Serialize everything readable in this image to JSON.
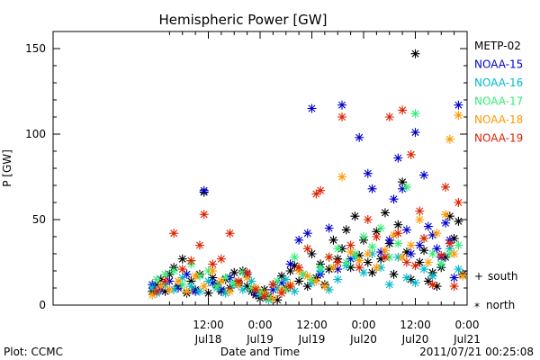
{
  "chart_data": {
    "type": "scatter",
    "title": "Hemispheric Power [GW]",
    "ylabel": "P [GW]",
    "xlabel": "Date and Time",
    "ylim": [
      0,
      160
    ],
    "y_ticks": [
      0,
      50,
      100,
      150
    ],
    "x_unit": "hours since 2011/07/17 00:00 UT",
    "xlim": [
      0,
      96
    ],
    "x_ticks": [
      {
        "t": 36,
        "time": "12:00",
        "date": "Jul18"
      },
      {
        "t": 48,
        "time": "0:00",
        "date": "Jul19"
      },
      {
        "t": 60,
        "time": "12:00",
        "date": "Jul19"
      },
      {
        "t": 72,
        "time": "0:00",
        "date": "Jul20"
      },
      {
        "t": 84,
        "time": "12:00",
        "date": "Jul20"
      },
      {
        "t": 96,
        "time": "0:00",
        "date": "Jul21"
      }
    ],
    "marker_legend": [
      {
        "symbol": "+",
        "label": "south"
      },
      {
        "symbol": "*",
        "label": "north"
      }
    ],
    "footer_left": "Plot: CCMC",
    "footer_right": "2011/07/21 00:25:08",
    "series": [
      {
        "name": "METP-02",
        "color": "#000000",
        "points": [
          [
            23,
            8
          ],
          [
            24,
            12
          ],
          [
            25,
            15
          ],
          [
            26,
            8
          ],
          [
            27,
            18
          ],
          [
            28,
            22
          ],
          [
            29,
            11
          ],
          [
            30,
            27
          ],
          [
            31,
            7
          ],
          [
            32,
            14
          ],
          [
            33,
            9
          ],
          [
            34,
            18
          ],
          [
            35,
            66
          ],
          [
            36,
            7
          ],
          [
            37,
            16
          ],
          [
            38,
            12
          ],
          [
            39,
            8
          ],
          [
            40,
            15
          ],
          [
            41,
            10
          ],
          [
            42,
            19
          ],
          [
            43,
            13
          ],
          [
            44,
            20
          ],
          [
            45,
            11
          ],
          [
            46,
            8
          ],
          [
            47,
            6
          ],
          [
            48,
            4
          ],
          [
            49,
            9
          ],
          [
            50,
            5
          ],
          [
            51,
            12
          ],
          [
            52,
            3
          ],
          [
            53,
            17
          ],
          [
            54,
            10
          ],
          [
            55,
            20
          ],
          [
            56,
            23
          ],
          [
            57,
            14
          ],
          [
            58,
            18
          ],
          [
            59,
            11
          ],
          [
            60,
            30
          ],
          [
            61,
            16
          ],
          [
            62,
            24
          ],
          [
            63,
            12
          ],
          [
            64,
            21
          ],
          [
            65,
            38
          ],
          [
            66,
            27
          ],
          [
            67,
            33
          ],
          [
            68,
            44
          ],
          [
            69,
            22
          ],
          [
            70,
            52
          ],
          [
            71,
            29
          ],
          [
            72,
            38
          ],
          [
            73,
            25
          ],
          [
            74,
            19
          ],
          [
            75,
            43
          ],
          [
            76,
            27
          ],
          [
            77,
            54
          ],
          [
            78,
            36
          ],
          [
            79,
            18
          ],
          [
            80,
            47
          ],
          [
            81,
            72
          ],
          [
            82,
            31
          ],
          [
            83,
            15
          ],
          [
            84,
            147
          ],
          [
            85,
            25
          ],
          [
            86,
            32
          ],
          [
            87,
            14
          ],
          [
            88,
            19
          ],
          [
            89,
            11
          ],
          [
            90,
            22
          ],
          [
            91,
            28
          ],
          [
            92,
            52
          ],
          [
            93,
            39
          ],
          [
            94,
            49
          ],
          [
            95,
            18
          ]
        ]
      },
      {
        "name": "NOAA-15",
        "color": "#0000cc",
        "points": [
          [
            23,
            12
          ],
          [
            25,
            9
          ],
          [
            27,
            14
          ],
          [
            29,
            10
          ],
          [
            31,
            18
          ],
          [
            33,
            8
          ],
          [
            35,
            67
          ],
          [
            37,
            13
          ],
          [
            39,
            9
          ],
          [
            41,
            16
          ],
          [
            43,
            12
          ],
          [
            45,
            18
          ],
          [
            47,
            7
          ],
          [
            49,
            5
          ],
          [
            51,
            9
          ],
          [
            53,
            13
          ],
          [
            55,
            24
          ],
          [
            57,
            38
          ],
          [
            59,
            42
          ],
          [
            60,
            115
          ],
          [
            62,
            18
          ],
          [
            64,
            45
          ],
          [
            66,
            21
          ],
          [
            67,
            117
          ],
          [
            69,
            27
          ],
          [
            71,
            98
          ],
          [
            73,
            77
          ],
          [
            74,
            68
          ],
          [
            76,
            31
          ],
          [
            78,
            38
          ],
          [
            79,
            62
          ],
          [
            80,
            86
          ],
          [
            81,
            68
          ],
          [
            82,
            44
          ],
          [
            83,
            30
          ],
          [
            84,
            101
          ],
          [
            85,
            35
          ],
          [
            86,
            76
          ],
          [
            87,
            46
          ],
          [
            88,
            41
          ],
          [
            89,
            33
          ],
          [
            90,
            28
          ],
          [
            91,
            48
          ],
          [
            92,
            38
          ],
          [
            93,
            16
          ],
          [
            94,
            117
          ]
        ]
      },
      {
        "name": "NOAA-16",
        "color": "#00bbcc",
        "points": [
          [
            23,
            10
          ],
          [
            24,
            7
          ],
          [
            26,
            12
          ],
          [
            28,
            9
          ],
          [
            30,
            16
          ],
          [
            32,
            11
          ],
          [
            34,
            8
          ],
          [
            36,
            14
          ],
          [
            38,
            10
          ],
          [
            40,
            7
          ],
          [
            42,
            12
          ],
          [
            44,
            9
          ],
          [
            46,
            14
          ],
          [
            48,
            6
          ],
          [
            50,
            3
          ],
          [
            52,
            10
          ],
          [
            54,
            15
          ],
          [
            56,
            8
          ],
          [
            58,
            18
          ],
          [
            60,
            13
          ],
          [
            62,
            20
          ],
          [
            64,
            9
          ],
          [
            66,
            15
          ],
          [
            68,
            23
          ],
          [
            70,
            28
          ],
          [
            72,
            19
          ],
          [
            74,
            30
          ],
          [
            76,
            22
          ],
          [
            78,
            12
          ],
          [
            80,
            28
          ],
          [
            82,
            16
          ],
          [
            84,
            13
          ],
          [
            86,
            21
          ],
          [
            88,
            17
          ],
          [
            90,
            24
          ],
          [
            92,
            33
          ],
          [
            94,
            21
          ]
        ]
      },
      {
        "name": "NOAA-17",
        "color": "#33ee77",
        "points": [
          [
            24,
            15
          ],
          [
            26,
            18
          ],
          [
            28,
            20
          ],
          [
            30,
            12
          ],
          [
            32,
            24
          ],
          [
            34,
            17
          ],
          [
            36,
            20
          ],
          [
            38,
            11
          ],
          [
            40,
            16
          ],
          [
            42,
            13
          ],
          [
            44,
            19
          ],
          [
            46,
            10
          ],
          [
            48,
            8
          ],
          [
            50,
            4
          ],
          [
            52,
            14
          ],
          [
            54,
            9
          ],
          [
            56,
            28
          ],
          [
            58,
            18
          ],
          [
            60,
            15
          ],
          [
            62,
            22
          ],
          [
            64,
            28
          ],
          [
            66,
            33
          ],
          [
            68,
            25
          ],
          [
            70,
            30
          ],
          [
            72,
            40
          ],
          [
            74,
            34
          ],
          [
            76,
            45
          ],
          [
            78,
            28
          ],
          [
            80,
            36
          ],
          [
            82,
            69
          ],
          [
            84,
            112
          ],
          [
            86,
            39
          ],
          [
            88,
            30
          ],
          [
            90,
            24
          ],
          [
            92,
            30
          ],
          [
            94,
            35
          ]
        ]
      },
      {
        "name": "NOAA-18",
        "color": "#ff9900",
        "points": [
          [
            23,
            6
          ],
          [
            25,
            11
          ],
          [
            27,
            9
          ],
          [
            29,
            14
          ],
          [
            31,
            8
          ],
          [
            33,
            17
          ],
          [
            35,
            11
          ],
          [
            37,
            20
          ],
          [
            39,
            14
          ],
          [
            41,
            8
          ],
          [
            43,
            12
          ],
          [
            45,
            16
          ],
          [
            47,
            10
          ],
          [
            49,
            7
          ],
          [
            51,
            4
          ],
          [
            53,
            9
          ],
          [
            55,
            12
          ],
          [
            57,
            20
          ],
          [
            59,
            17
          ],
          [
            61,
            14
          ],
          [
            63,
            11
          ],
          [
            65,
            22
          ],
          [
            67,
            75
          ],
          [
            69,
            31
          ],
          [
            71,
            26
          ],
          [
            73,
            30
          ],
          [
            75,
            22
          ],
          [
            77,
            32
          ],
          [
            79,
            41
          ],
          [
            81,
            28
          ],
          [
            83,
            35
          ],
          [
            85,
            50
          ],
          [
            87,
            25
          ],
          [
            89,
            42
          ],
          [
            91,
            53
          ],
          [
            92,
            97
          ],
          [
            93,
            30
          ],
          [
            94,
            111
          ],
          [
            95,
            17
          ]
        ]
      },
      {
        "name": "NOAA-19",
        "color": "#dd2200",
        "points": [
          [
            24,
            8
          ],
          [
            26,
            14
          ],
          [
            28,
            42
          ],
          [
            30,
            21
          ],
          [
            32,
            26
          ],
          [
            34,
            35
          ],
          [
            35,
            53
          ],
          [
            37,
            24
          ],
          [
            39,
            27
          ],
          [
            41,
            42
          ],
          [
            43,
            14
          ],
          [
            45,
            19
          ],
          [
            47,
            9
          ],
          [
            49,
            5
          ],
          [
            51,
            12
          ],
          [
            53,
            7
          ],
          [
            55,
            11
          ],
          [
            57,
            22
          ],
          [
            59,
            33
          ],
          [
            61,
            65
          ],
          [
            62,
            67
          ],
          [
            64,
            28
          ],
          [
            66,
            25
          ],
          [
            67,
            110
          ],
          [
            69,
            35
          ],
          [
            71,
            22
          ],
          [
            73,
            50
          ],
          [
            75,
            40
          ],
          [
            77,
            28
          ],
          [
            78,
            110
          ],
          [
            80,
            42
          ],
          [
            81,
            114
          ],
          [
            82,
            25
          ],
          [
            83,
            88
          ],
          [
            84,
            23
          ],
          [
            85,
            55
          ],
          [
            86,
            39
          ],
          [
            88,
            12
          ],
          [
            90,
            29
          ],
          [
            91,
            69
          ],
          [
            92,
            36
          ],
          [
            93,
            11
          ],
          [
            94,
            60
          ]
        ]
      }
    ]
  }
}
